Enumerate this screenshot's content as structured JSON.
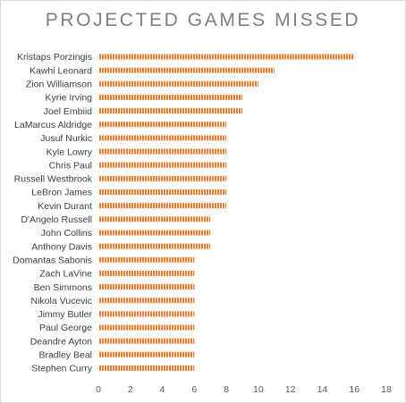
{
  "chart_data": {
    "type": "bar",
    "orientation": "horizontal",
    "title": "PROJECTED GAMES MISSED",
    "categories": [
      "Kristaps Porzingis",
      "Kawhi Leonard",
      "Zion Williamson",
      "Kyrie Irving",
      "Joel Embiid",
      "LaMarcus Aldridge",
      "Jusuf Nurkic",
      "Kyle Lowry",
      "Chris Paul",
      "Russell Westbrook",
      "LeBron James",
      "Kevin Durant",
      "D'Angelo Russell",
      "John Collins",
      "Anthony Davis",
      "Domantas Sabonis",
      "Zach LaVine",
      "Ben Simmons",
      "Nikola Vucevic",
      "Jimmy Butler",
      "Paul George",
      "Deandre Ayton",
      "Bradley Beal",
      "Stephen Curry"
    ],
    "values": [
      16,
      11,
      10,
      9,
      9,
      8,
      8,
      8,
      8,
      8,
      8,
      8,
      7,
      7,
      7,
      6,
      6,
      6,
      6,
      6,
      6,
      6,
      6,
      6
    ],
    "xlim": [
      0,
      18
    ],
    "xticks": [
      0,
      2,
      4,
      6,
      8,
      10,
      12,
      14,
      16,
      18
    ],
    "xlabel": "",
    "ylabel": "",
    "grid": false,
    "legend": "none",
    "bar_color": "#ed7d31"
  }
}
